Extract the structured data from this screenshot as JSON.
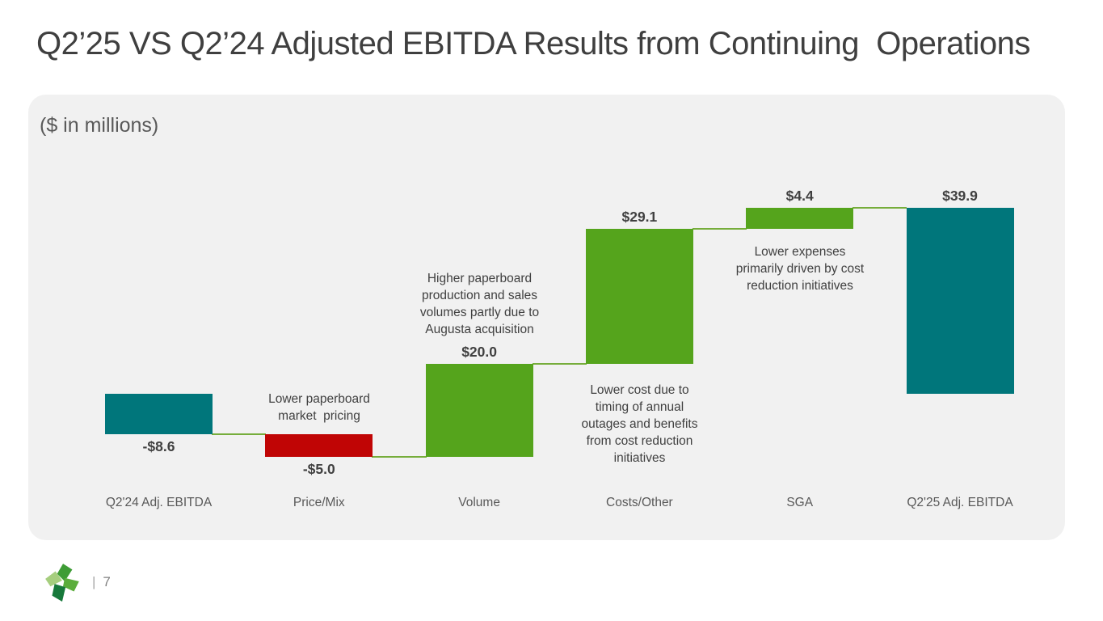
{
  "slide": {
    "title": "Q2’25 VS Q2’24 Adjusted EBITDA Results from Continuing  Operations",
    "unit_note": "($ in millions)",
    "footer": {
      "separator": "|",
      "page_number": "7"
    }
  },
  "chart_data": {
    "type": "waterfall",
    "title": "Q2’25 VS Q2’24 Adjusted EBITDA Results from Continuing  Operations",
    "unit_note": "($ in millions)",
    "categories": [
      "Q2'24 Adj. EBITDA",
      "Price/Mix",
      "Volume",
      "Costs/Other",
      "SGA",
      "Q2'25 Adj. EBITDA"
    ],
    "steps": [
      {
        "category": "Q2'24 Adj. EBITDA",
        "kind": "total",
        "value": -8.6,
        "value_label": "-$8.6",
        "label_position": "below",
        "color_key": "total",
        "annotation": null
      },
      {
        "category": "Price/Mix",
        "kind": "delta",
        "value": -5.0,
        "value_label": "-$5.0",
        "label_position": "below",
        "color_key": "negative",
        "annotation": "Lower paperboard\nmarket  pricing"
      },
      {
        "category": "Volume",
        "kind": "delta",
        "value": 20.0,
        "value_label": "$20.0",
        "label_position": "above",
        "color_key": "positive",
        "annotation": "Higher paperboard\nproduction and sales\nvolumes partly due to\nAugusta acquisition"
      },
      {
        "category": "Costs/Other",
        "kind": "delta",
        "value": 29.1,
        "value_label": "$29.1",
        "label_position": "above",
        "color_key": "positive",
        "annotation": "Lower cost due to\ntiming of annual\noutages and benefits\nfrom cost reduction\ninitiatives"
      },
      {
        "category": "SGA",
        "kind": "delta",
        "value": 4.4,
        "value_label": "$4.4",
        "label_position": "above",
        "color_key": "positive",
        "annotation": "Lower expenses\nprimarily driven by cost\nreduction initiatives"
      },
      {
        "category": "Q2'25 Adj. EBITDA",
        "kind": "total",
        "value": 39.9,
        "value_label": "$39.9",
        "label_position": "above",
        "color_key": "total",
        "annotation": null
      }
    ],
    "cumulative": [
      -8.6,
      -13.6,
      6.4,
      35.5,
      39.9,
      39.9
    ],
    "colors": {
      "total": "#00767B",
      "positive": "#55A41C",
      "negative": "#C00505",
      "connector": "#76AD3B"
    },
    "axis": {
      "gridlines": false,
      "axis_lines": false,
      "legend": "none"
    }
  }
}
